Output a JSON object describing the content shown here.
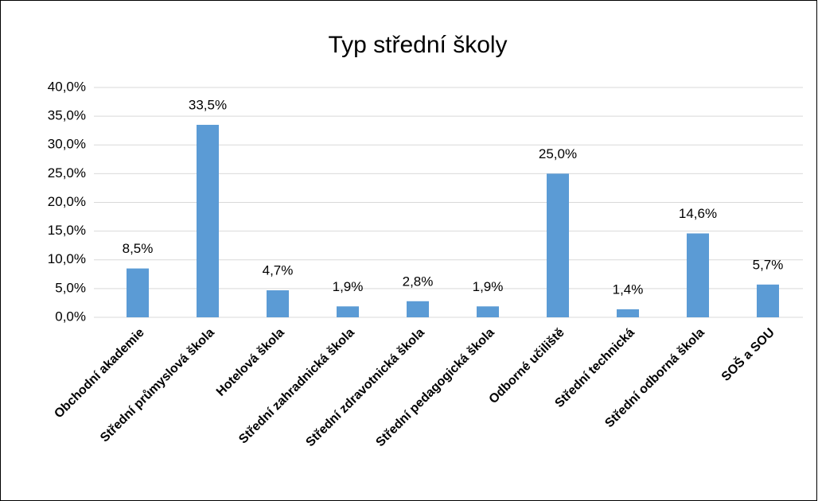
{
  "chart_data": {
    "type": "bar",
    "title": "Typ střední školy",
    "categories": [
      "Obchodní akademie",
      "Střední průmyslová škola",
      "Hotelová škola",
      "Střední zahradnická škola",
      "Střední zdravotnická škola",
      "Střední pedagogická škola",
      "Odborné učiliště",
      "Střední technická",
      "Střední odborná škola",
      "SOŠ a SOU"
    ],
    "values": [
      8.5,
      33.5,
      4.7,
      1.9,
      2.8,
      1.9,
      25.0,
      1.4,
      14.6,
      5.7
    ],
    "value_labels": [
      "8,5%",
      "33,5%",
      "4,7%",
      "1,9%",
      "2,8%",
      "1,9%",
      "25,0%",
      "1,4%",
      "14,6%",
      "5,7%"
    ],
    "color": "#5b9bd5",
    "ylim": [
      0,
      40
    ],
    "yticks": [
      {
        "value": 0,
        "label": "0,0%"
      },
      {
        "value": 5,
        "label": "5,0%"
      },
      {
        "value": 10,
        "label": "10,0%"
      },
      {
        "value": 15,
        "label": "15,0%"
      },
      {
        "value": 20,
        "label": "20,0%"
      },
      {
        "value": 25,
        "label": "25,0%"
      },
      {
        "value": 30,
        "label": "30,0%"
      },
      {
        "value": 35,
        "label": "35,0%"
      },
      {
        "value": 40,
        "label": "40,0%"
      }
    ],
    "grid": true
  }
}
